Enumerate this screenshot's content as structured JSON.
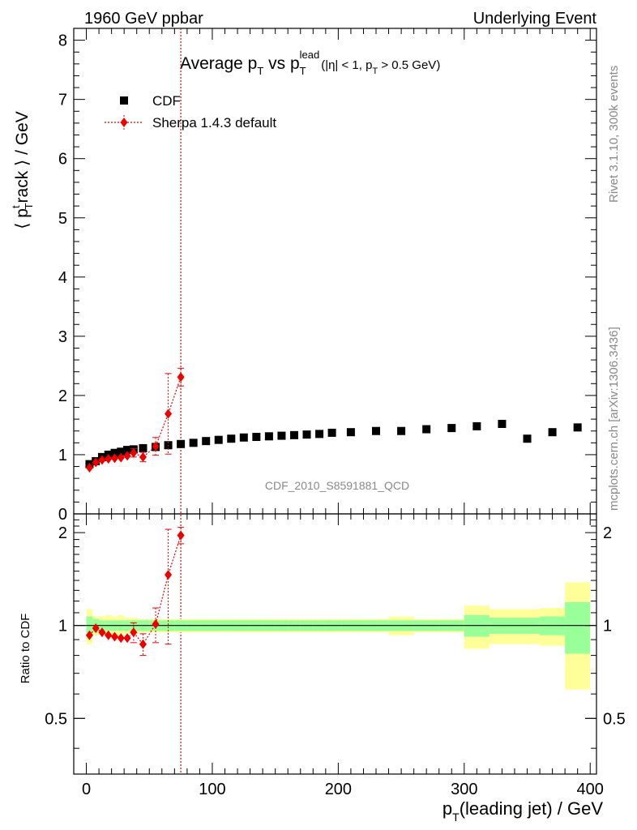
{
  "header": {
    "left": "1960 GeV ppbar",
    "right": "Underlying Event"
  },
  "title": {
    "main": "Average p",
    "sub_t": "T",
    "vs": " vs p",
    "sub_t2": "T",
    "sup_lead": "lead",
    "cuts_a": "(|η| < 1, p",
    "cuts_sub": "T",
    "cuts_b": " > 0.5 GeV)"
  },
  "ylabel_main": {
    "open": "⟨ p",
    "sup": "t",
    "sub": "T",
    "rest": "rack ⟩ / GeV"
  },
  "ylabel_ratio": "Ratio to CDF",
  "xlabel": {
    "p": "p",
    "sub": "T",
    "rest": "(leading jet) / GeV"
  },
  "side_text_top": "Rivet 3.1.10,  300k events",
  "side_text_bottom": "mcplots.cern.ch [arXiv:1306.3436]",
  "analysis_id": "CDF_2010_S8591881_QCD",
  "legend": [
    {
      "label": "CDF",
      "marker": "square",
      "color": "#000000"
    },
    {
      "label": "Sherpa 1.4.3 default",
      "marker": "diamond",
      "color": "#ee0000"
    }
  ],
  "colors": {
    "data": "#000000",
    "mc": "#ee0000",
    "band_inner": "#99ff99",
    "band_outer": "#ffff99"
  },
  "chart_data": {
    "type": "scatter",
    "xlim": [
      -10,
      405
    ],
    "ylim": [
      0,
      8.2
    ],
    "ratio_ylim": [
      0.33,
      2.3
    ],
    "x_ticks": [
      0,
      100,
      200,
      300,
      400
    ],
    "y_ticks": [
      0,
      1,
      2,
      3,
      4,
      5,
      6,
      7,
      8
    ],
    "ratio_y_ticks": [
      0.5,
      1,
      2
    ],
    "series": [
      {
        "name": "CDF",
        "x": [
          2.5,
          7.5,
          12.5,
          17.5,
          22.5,
          27.5,
          32.5,
          37.5,
          45,
          55,
          65,
          75,
          85,
          95,
          105,
          115,
          125,
          135,
          145,
          155,
          165,
          175,
          185,
          195,
          210,
          230,
          250,
          270,
          290,
          310,
          330,
          350,
          370,
          390
        ],
        "y": [
          0.84,
          0.89,
          0.96,
          1.0,
          1.03,
          1.05,
          1.08,
          1.09,
          1.11,
          1.13,
          1.16,
          1.18,
          1.2,
          1.23,
          1.25,
          1.27,
          1.29,
          1.3,
          1.31,
          1.32,
          1.33,
          1.34,
          1.35,
          1.37,
          1.38,
          1.4,
          1.4,
          1.43,
          1.45,
          1.48,
          1.52,
          1.27,
          1.38,
          1.46
        ],
        "band_inner": [
          0.07,
          0.05,
          0.04,
          0.04,
          0.04,
          0.04,
          0.04,
          0.04,
          0.04,
          0.04,
          0.04,
          0.04,
          0.04,
          0.04,
          0.04,
          0.04,
          0.04,
          0.04,
          0.04,
          0.04,
          0.04,
          0.04,
          0.04,
          0.04,
          0.04,
          0.04,
          0.04,
          0.04,
          0.04,
          0.08,
          0.06,
          0.06,
          0.07,
          0.19
        ],
        "band_outer": [
          0.13,
          0.07,
          0.07,
          0.08,
          0.07,
          0.08,
          0.06,
          0.06,
          0.05,
          0.05,
          0.05,
          0.05,
          0.05,
          0.05,
          0.05,
          0.05,
          0.05,
          0.05,
          0.05,
          0.05,
          0.05,
          0.05,
          0.05,
          0.05,
          0.05,
          0.05,
          0.07,
          0.05,
          0.05,
          0.16,
          0.13,
          0.13,
          0.14,
          0.38
        ]
      },
      {
        "name": "Sherpa 1.4.3 default",
        "x": [
          2.5,
          7.5,
          12.5,
          17.5,
          22.5,
          27.5,
          32.5,
          37.5,
          45,
          55,
          65,
          75
        ],
        "y": [
          0.78,
          0.87,
          0.91,
          0.93,
          0.94,
          0.95,
          0.98,
          1.03,
          0.96,
          1.14,
          1.69,
          2.31
        ],
        "y_err": [
          0.03,
          0.03,
          0.03,
          0.03,
          0.04,
          0.04,
          0.05,
          0.07,
          0.08,
          0.15,
          0.68,
          0.15
        ],
        "ratio": [
          0.93,
          0.98,
          0.95,
          0.93,
          0.92,
          0.91,
          0.91,
          0.95,
          0.87,
          1.01,
          1.46,
          1.96
        ],
        "ratio_err": [
          0.03,
          0.03,
          0.03,
          0.03,
          0.04,
          0.04,
          0.05,
          0.07,
          0.07,
          0.13,
          0.59,
          0.12
        ]
      }
    ],
    "overflow_line_x": 75
  }
}
